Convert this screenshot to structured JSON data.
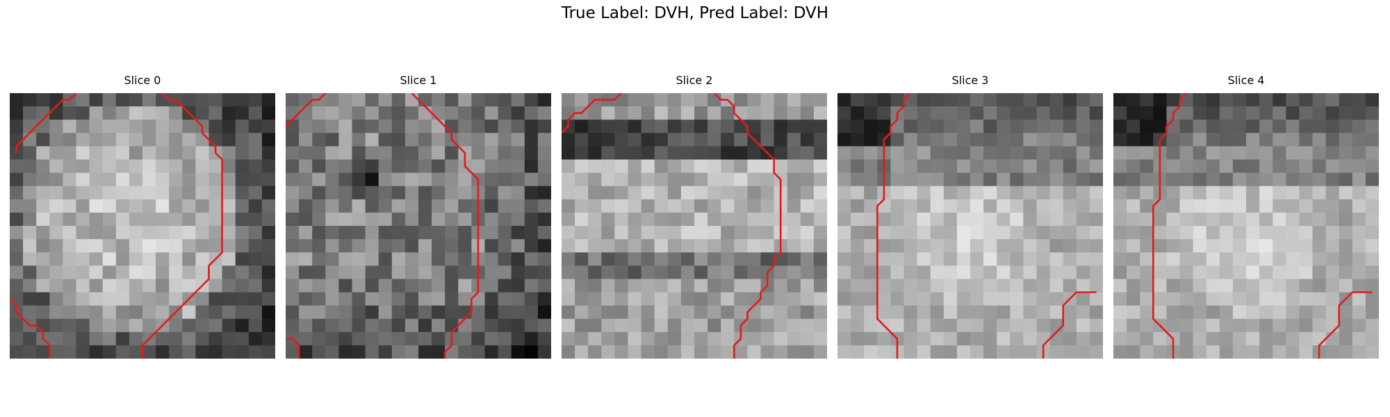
{
  "figure": {
    "title": "True Label: DVH, Pred Label: DVH",
    "contour_color": "#e31a1c"
  },
  "grid": {
    "rows": 20,
    "cols": 20
  },
  "slices": [
    {
      "title": "Slice 0",
      "texture": {
        "seed": 11,
        "blob": "disk",
        "blob_brightness": 0.78,
        "background": 0.42,
        "noise": 0.16,
        "darkspot": null
      },
      "contours": [
        [
          [
            0.5,
            4.5
          ],
          [
            0.5,
            4.0
          ],
          [
            1.0,
            3.5
          ],
          [
            1.5,
            3.0
          ],
          [
            2.0,
            2.5
          ],
          [
            2.5,
            2.0
          ],
          [
            3.0,
            1.5
          ],
          [
            3.5,
            1.0
          ],
          [
            4.0,
            0.5
          ],
          [
            4.5,
            0.5
          ],
          [
            5.0,
            0.0
          ]
        ],
        [
          [
            11.5,
            0.0
          ],
          [
            12.0,
            0.5
          ],
          [
            12.5,
            0.5
          ],
          [
            13.0,
            1.0
          ],
          [
            13.5,
            1.5
          ],
          [
            14.0,
            2.0
          ],
          [
            14.5,
            2.5
          ],
          [
            14.5,
            3.0
          ],
          [
            15.0,
            3.5
          ],
          [
            15.5,
            4.0
          ],
          [
            15.5,
            4.5
          ],
          [
            16.0,
            5.0
          ],
          [
            16.0,
            6.0
          ],
          [
            16.0,
            7.0
          ],
          [
            16.0,
            8.0
          ],
          [
            16.0,
            9.0
          ],
          [
            16.0,
            10.0
          ],
          [
            16.0,
            11.0
          ],
          [
            16.0,
            12.0
          ],
          [
            15.5,
            12.5
          ],
          [
            15.0,
            13.0
          ],
          [
            15.0,
            14.0
          ],
          [
            14.5,
            14.5
          ],
          [
            14.0,
            15.0
          ],
          [
            13.5,
            15.5
          ],
          [
            13.0,
            16.0
          ],
          [
            12.5,
            16.5
          ],
          [
            12.0,
            17.0
          ],
          [
            11.5,
            17.5
          ],
          [
            11.0,
            18.0
          ],
          [
            10.5,
            18.5
          ],
          [
            10.0,
            19.0
          ],
          [
            10.0,
            20.0
          ]
        ],
        [
          [
            0.0,
            15.5
          ],
          [
            0.5,
            16.0
          ],
          [
            0.5,
            16.5
          ],
          [
            1.0,
            17.0
          ],
          [
            1.5,
            17.5
          ],
          [
            2.0,
            17.5
          ],
          [
            2.5,
            18.0
          ],
          [
            2.5,
            18.5
          ],
          [
            3.0,
            19.0
          ],
          [
            3.0,
            20.0
          ]
        ]
      ]
    },
    {
      "title": "Slice 1",
      "texture": {
        "seed": 23,
        "blob": "none",
        "blob_brightness": 0.55,
        "background": 0.5,
        "noise": 0.2,
        "darkspot": [
          5.8,
          6.2
        ]
      },
      "contours": [
        [
          [
            0.0,
            2.5
          ],
          [
            0.5,
            2.0
          ],
          [
            1.0,
            1.5
          ],
          [
            1.5,
            1.0
          ],
          [
            2.0,
            0.5
          ],
          [
            2.5,
            0.5
          ],
          [
            3.0,
            0.0
          ]
        ],
        [
          [
            9.5,
            0.0
          ],
          [
            10.0,
            0.5
          ],
          [
            10.5,
            1.0
          ],
          [
            11.0,
            1.5
          ],
          [
            11.5,
            2.0
          ],
          [
            12.0,
            2.5
          ],
          [
            12.5,
            3.0
          ],
          [
            12.5,
            3.5
          ],
          [
            13.0,
            4.0
          ],
          [
            13.5,
            4.5
          ],
          [
            13.5,
            5.5
          ],
          [
            14.0,
            6.0
          ],
          [
            14.5,
            6.5
          ],
          [
            14.5,
            7.5
          ],
          [
            14.5,
            9.0
          ],
          [
            14.5,
            11.0
          ],
          [
            14.5,
            13.0
          ],
          [
            14.5,
            15.0
          ],
          [
            14.0,
            15.5
          ],
          [
            14.0,
            16.5
          ],
          [
            13.5,
            17.0
          ],
          [
            13.0,
            17.5
          ],
          [
            12.5,
            18.0
          ],
          [
            12.5,
            19.0
          ],
          [
            12.0,
            19.5
          ],
          [
            12.0,
            20.0
          ]
        ],
        [
          [
            0.0,
            18.5
          ],
          [
            0.5,
            18.5
          ],
          [
            1.0,
            19.0
          ],
          [
            1.0,
            20.0
          ]
        ]
      ]
    },
    {
      "title": "Slice 2",
      "texture": {
        "seed": 37,
        "blob": "band",
        "blob_brightness": 0.7,
        "background": 0.55,
        "noise": 0.15,
        "darkspot": null
      },
      "contours": [
        [
          [
            0.0,
            3.0
          ],
          [
            0.5,
            2.5
          ],
          [
            0.5,
            2.0
          ],
          [
            1.0,
            1.5
          ],
          [
            1.5,
            1.5
          ],
          [
            2.0,
            1.0
          ],
          [
            2.5,
            0.5
          ],
          [
            3.0,
            0.5
          ],
          [
            3.5,
            0.5
          ],
          [
            4.0,
            0.5
          ],
          [
            4.5,
            0.0
          ]
        ],
        [
          [
            11.5,
            0.0
          ],
          [
            12.0,
            0.5
          ],
          [
            12.5,
            0.5
          ],
          [
            13.0,
            1.0
          ],
          [
            13.0,
            1.5
          ],
          [
            13.5,
            2.0
          ],
          [
            14.0,
            2.5
          ],
          [
            14.0,
            3.0
          ],
          [
            14.5,
            3.5
          ],
          [
            15.0,
            4.0
          ],
          [
            15.5,
            4.5
          ],
          [
            16.0,
            5.0
          ],
          [
            16.0,
            6.0
          ],
          [
            16.5,
            6.5
          ],
          [
            16.5,
            7.0
          ],
          [
            16.5,
            8.0
          ],
          [
            16.5,
            9.0
          ],
          [
            16.5,
            10.0
          ],
          [
            16.5,
            11.0
          ],
          [
            16.5,
            12.0
          ],
          [
            16.0,
            12.5
          ],
          [
            16.0,
            13.0
          ],
          [
            15.5,
            13.5
          ],
          [
            15.5,
            14.5
          ],
          [
            15.0,
            15.0
          ],
          [
            15.0,
            15.5
          ],
          [
            14.5,
            16.0
          ],
          [
            14.0,
            16.5
          ],
          [
            14.0,
            17.0
          ],
          [
            13.5,
            17.5
          ],
          [
            13.5,
            18.5
          ],
          [
            13.0,
            19.0
          ],
          [
            13.0,
            20.0
          ]
        ]
      ]
    },
    {
      "title": "Slice 3",
      "texture": {
        "seed": 51,
        "blob": "lower",
        "blob_brightness": 0.82,
        "background": 0.55,
        "noise": 0.12,
        "darkspot": null
      },
      "contours": [
        [
          [
            5.5,
            0.0
          ],
          [
            5.0,
            0.5
          ],
          [
            5.0,
            1.0
          ],
          [
            4.5,
            1.5
          ],
          [
            4.5,
            2.0
          ],
          [
            4.0,
            2.5
          ],
          [
            4.0,
            3.0
          ],
          [
            3.5,
            3.5
          ],
          [
            3.5,
            4.0
          ],
          [
            3.5,
            5.0
          ],
          [
            3.5,
            6.0
          ],
          [
            3.5,
            7.0
          ],
          [
            3.5,
            8.0
          ],
          [
            3.0,
            8.5
          ],
          [
            3.0,
            9.5
          ],
          [
            3.0,
            11.0
          ],
          [
            3.0,
            13.0
          ],
          [
            3.0,
            15.0
          ],
          [
            3.0,
            17.0
          ],
          [
            3.5,
            17.5
          ],
          [
            4.0,
            18.0
          ],
          [
            4.5,
            18.5
          ],
          [
            4.5,
            19.0
          ],
          [
            4.5,
            20.0
          ]
        ],
        [
          [
            19.5,
            15.0
          ],
          [
            19.0,
            15.0
          ],
          [
            18.0,
            15.0
          ],
          [
            17.5,
            15.5
          ],
          [
            17.0,
            16.0
          ],
          [
            17.0,
            17.0
          ],
          [
            17.0,
            17.5
          ],
          [
            16.5,
            18.0
          ],
          [
            16.0,
            18.5
          ],
          [
            15.5,
            19.0
          ],
          [
            15.5,
            20.0
          ]
        ]
      ]
    },
    {
      "title": "Slice 4",
      "texture": {
        "seed": 67,
        "blob": "lower",
        "blob_brightness": 0.82,
        "background": 0.55,
        "noise": 0.12,
        "darkspot": null
      },
      "contours": [
        [
          [
            5.5,
            0.0
          ],
          [
            5.0,
            0.5
          ],
          [
            5.0,
            1.0
          ],
          [
            4.5,
            1.5
          ],
          [
            4.5,
            2.0
          ],
          [
            4.0,
            2.5
          ],
          [
            4.0,
            3.0
          ],
          [
            3.5,
            3.5
          ],
          [
            3.5,
            4.0
          ],
          [
            3.5,
            5.0
          ],
          [
            3.5,
            6.0
          ],
          [
            3.5,
            7.0
          ],
          [
            3.5,
            8.0
          ],
          [
            3.0,
            8.5
          ],
          [
            3.0,
            9.5
          ],
          [
            3.0,
            11.0
          ],
          [
            3.0,
            13.0
          ],
          [
            3.0,
            15.0
          ],
          [
            3.0,
            17.0
          ],
          [
            3.5,
            17.5
          ],
          [
            4.0,
            18.0
          ],
          [
            4.5,
            18.5
          ],
          [
            4.5,
            19.0
          ],
          [
            4.5,
            20.0
          ]
        ],
        [
          [
            19.5,
            15.0
          ],
          [
            19.0,
            15.0
          ],
          [
            18.0,
            15.0
          ],
          [
            17.5,
            15.5
          ],
          [
            17.0,
            16.0
          ],
          [
            17.0,
            17.0
          ],
          [
            17.0,
            17.5
          ],
          [
            16.5,
            18.0
          ],
          [
            16.0,
            18.5
          ],
          [
            15.5,
            19.0
          ],
          [
            15.5,
            20.0
          ]
        ]
      ]
    }
  ]
}
